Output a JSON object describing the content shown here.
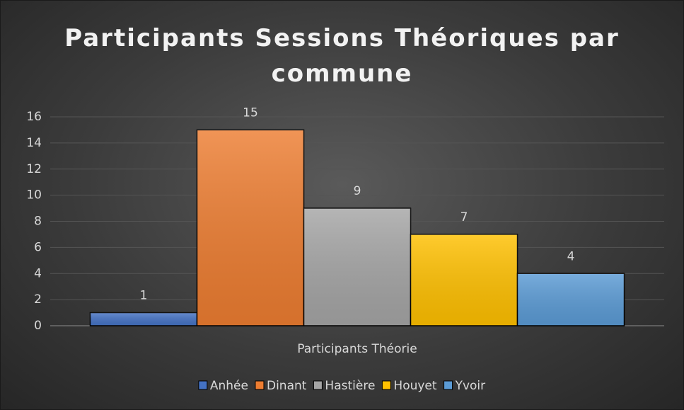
{
  "chart_data": {
    "type": "bar",
    "title": "Participants Sessions Théoriques par commune",
    "categories": [
      "Participants Théorie"
    ],
    "series": [
      {
        "name": "Anhée",
        "color": "#4472c4",
        "values": [
          1
        ]
      },
      {
        "name": "Dinant",
        "color": "#ed7d31",
        "values": [
          15
        ]
      },
      {
        "name": "Hastière",
        "color": "#a5a5a5",
        "values": [
          9
        ]
      },
      {
        "name": "Houyet",
        "color": "#ffc000",
        "values": [
          7
        ]
      },
      {
        "name": "Yvoir",
        "color": "#5b9bd5",
        "values": [
          4
        ]
      }
    ],
    "ylim": [
      0,
      16
    ],
    "yticks": [
      0,
      2,
      4,
      6,
      8,
      10,
      12,
      14,
      16
    ],
    "grid": true,
    "legend": "bottom",
    "data_labels": true
  }
}
